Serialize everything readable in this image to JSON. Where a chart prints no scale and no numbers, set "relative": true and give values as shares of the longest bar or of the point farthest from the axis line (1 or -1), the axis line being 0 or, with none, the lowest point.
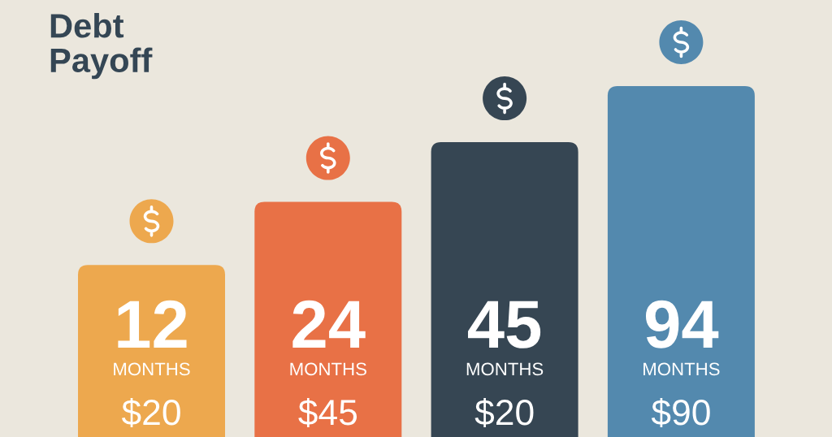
{
  "chart_data": {
    "type": "bar",
    "title": "Debt\nPayoff",
    "categories": [
      "12\nMONTHS\n$20",
      "24\nMONTHS\n$45",
      "45\nMONTHS\n$20",
      "94\nMONTHS\n$90"
    ],
    "values": [
      0.49,
      0.67,
      0.84,
      1
    ],
    "colors": [
      "#eda84e",
      "#e87146",
      "#364653",
      "#5389ae"
    ],
    "relative": true
  }
}
